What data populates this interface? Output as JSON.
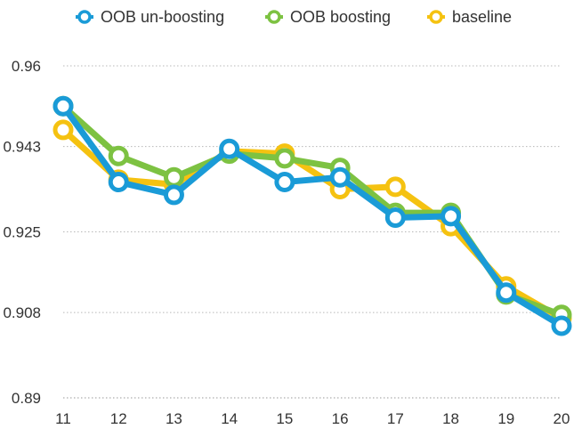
{
  "chart_data": {
    "type": "line",
    "title": "",
    "xlabel": "",
    "ylabel": "",
    "x": [
      11,
      12,
      13,
      14,
      15,
      16,
      17,
      18,
      19,
      20
    ],
    "ylim": [
      0.89,
      0.96
    ],
    "yticks": [
      "0.96",
      "0.943",
      "0.925",
      "0.908",
      "0.89"
    ],
    "ytick_values": [
      0.96,
      0.943,
      0.925,
      0.908,
      0.89
    ],
    "legend_position": "top",
    "series": [
      {
        "name": "baseline",
        "color": "#f5c211",
        "values": [
          0.9465,
          0.936,
          0.935,
          0.942,
          0.9415,
          0.934,
          0.9345,
          0.9262,
          0.9135,
          0.9068
        ]
      },
      {
        "name": "OOB boosting",
        "color": "#7dc242",
        "values": [
          0.9515,
          0.941,
          0.9365,
          0.9415,
          0.9405,
          0.9385,
          0.929,
          0.929,
          0.9118,
          0.9075
        ]
      },
      {
        "name": "OOB un-boosting",
        "color": "#1a9bd7",
        "values": [
          0.9515,
          0.9355,
          0.9328,
          0.9425,
          0.9355,
          0.9365,
          0.928,
          0.9283,
          0.9122,
          0.9052
        ]
      }
    ],
    "legend_order": [
      "OOB un-boosting",
      "OOB boosting",
      "baseline"
    ]
  }
}
